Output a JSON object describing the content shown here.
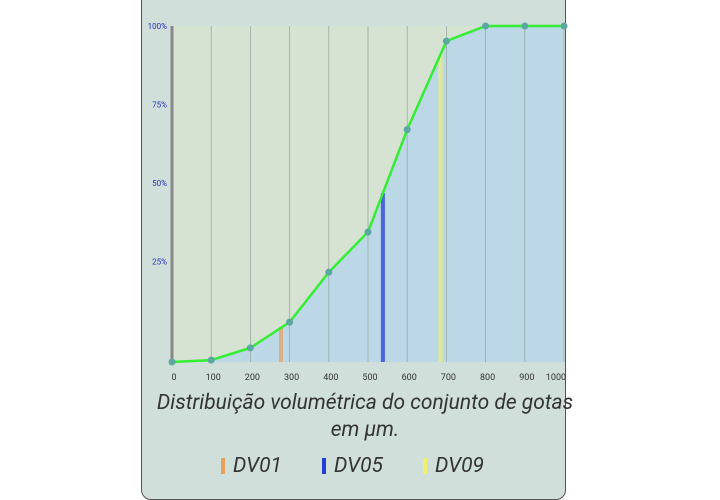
{
  "chart_data": {
    "type": "line",
    "title": "Distribuição volumétrica do conjunto de gotas em µm.",
    "x": [
      0,
      100,
      200,
      300,
      400,
      500,
      600,
      700,
      800,
      900,
      1000
    ],
    "values": [
      -7,
      -6.4,
      -2.5,
      5.7,
      21.6,
      34.4,
      67,
      95.2,
      100,
      100,
      100
    ],
    "line_color": "#33ee33",
    "point_color": "#5aa8a0",
    "fill_below": "#bcd8e6",
    "fill_above": "#d6e2d2",
    "xlim": [
      0,
      1000
    ],
    "xticks": [
      0,
      100,
      200,
      300,
      400,
      500,
      600,
      700,
      800,
      900,
      1000
    ],
    "ylim": [
      -7,
      100
    ],
    "yticks": [
      {
        "value": 25,
        "label": "25%"
      },
      {
        "value": 50,
        "label": "50%"
      },
      {
        "value": 75,
        "label": "75%"
      },
      {
        "value": 100,
        "label": "100%"
      }
    ],
    "grid": true,
    "markers": [
      {
        "name": "DV01",
        "color": "#e8a060",
        "value": 278
      },
      {
        "name": "DV05",
        "color": "#2040d8",
        "value": 538
      },
      {
        "name": "DV09",
        "color": "#eef070",
        "value": 685
      }
    ]
  }
}
